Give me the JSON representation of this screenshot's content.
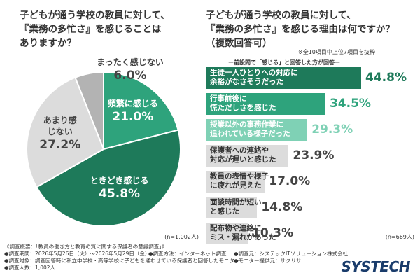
{
  "left": {
    "title_lines": [
      "子どもが通う学校の教員に対して、",
      "『業務の多忙さ』を感じることは",
      "ありますか？"
    ],
    "sample_note": "(n=1,002人)"
  },
  "right": {
    "title_lines": [
      "子どもが通う学校の教員に対して、",
      "『業務の多忙さ』を感じる理由は何ですか？"
    ],
    "subtitle": "（複数回答可）",
    "note_top": "※全10項目中上位7項目を抜粋",
    "note_caption": "ー前設問で「感じる」と回答した方が回答ー",
    "sample_note": "(n=669人)"
  },
  "footer": {
    "lines": [
      "《調査概要：「教員の働き方と教育の質に関する保護者の意識調査」》",
      "●調査期間：2026年5月26日（火）〜2026年5月29日（金）",
      "●調査方法：インターネット調査",
      "●調査元：システックITソリューション株式会社",
      "●調査対象：調査回答時に私立中学校・高等学校に子どもを通わせている保護者と回答したモニター",
      "●モニター提供元：サクリサ",
      "●調査人数：1,002人"
    ],
    "brand": "SYSTECH"
  },
  "colors": {
    "dark_green": "#1e7a5a",
    "mid_green": "#2ea37c",
    "light_green": "#7fd1b5",
    "gray_light": "#dcdcdc",
    "gray_mid": "#b3b3b3"
  },
  "chart_data": [
    {
      "type": "pie",
      "title": "子どもが通う学校の教員に対して、『業務の多忙さ』を感じることはありますか？",
      "slices": [
        {
          "label": "頻繁に感じる",
          "value": 21.0,
          "value_text": "21.0%",
          "color": "#2ea37c"
        },
        {
          "label": "ときどき感じる",
          "value": 45.8,
          "value_text": "45.8%",
          "color": "#1e7a5a"
        },
        {
          "label": "あまり感じない",
          "value": 27.2,
          "value_text": "27.2%",
          "color": "#dcdcdc"
        },
        {
          "label": "まったく感じない",
          "value": 6.0,
          "value_text": "6.0%",
          "color": "#b3b3b3"
        }
      ]
    },
    {
      "type": "bar",
      "title": "子どもが通う学校の教員に対して、『業務の多忙さ』を感じる理由は何ですか？（複数回答可）",
      "xlim": [
        0,
        44.8
      ],
      "bars": [
        {
          "label_lines": [
            "生徒一人ひとりへの対応に",
            "余裕がなさそうだった"
          ],
          "value": 44.8,
          "value_text": "44.8%",
          "color": "#1e7a5a",
          "text_color": "#ffffff",
          "value_color": "#1e7a5a"
        },
        {
          "label_lines": [
            "行事前後に",
            "慌ただしさを感じた"
          ],
          "value": 34.5,
          "value_text": "34.5%",
          "color": "#2ea37c",
          "text_color": "#ffffff",
          "value_color": "#2ea37c"
        },
        {
          "label_lines": [
            "授業以外の事務作業に",
            "追われている様子だった"
          ],
          "value": 29.3,
          "value_text": "29.3%",
          "color": "#7fd1b5",
          "text_color": "#ffffff",
          "value_color": "#7fd1b5"
        },
        {
          "label_lines": [
            "保護者への連絡や",
            "対応が遅いと感じた"
          ],
          "value": 23.9,
          "value_text": "23.9%",
          "color": "#dcdcdc",
          "text_color": "#333333",
          "value_color": "#444444"
        },
        {
          "label_lines": [
            "教員の表情や様子",
            "に疲れが見えた"
          ],
          "value": 17.0,
          "value_text": "17.0%",
          "color": "#dcdcdc",
          "text_color": "#333333",
          "value_color": "#444444"
        },
        {
          "label_lines": [
            "面談時間が短い",
            "と感じた"
          ],
          "value": 14.8,
          "value_text": "14.8%",
          "color": "#dcdcdc",
          "text_color": "#333333",
          "value_color": "#444444"
        },
        {
          "label_lines": [
            "配布物や連絡に",
            "ミス・漏れがあった"
          ],
          "value": 10.3,
          "value_text": "10.3%",
          "color": "#dcdcdc",
          "text_color": "#333333",
          "value_color": "#444444"
        }
      ]
    }
  ]
}
